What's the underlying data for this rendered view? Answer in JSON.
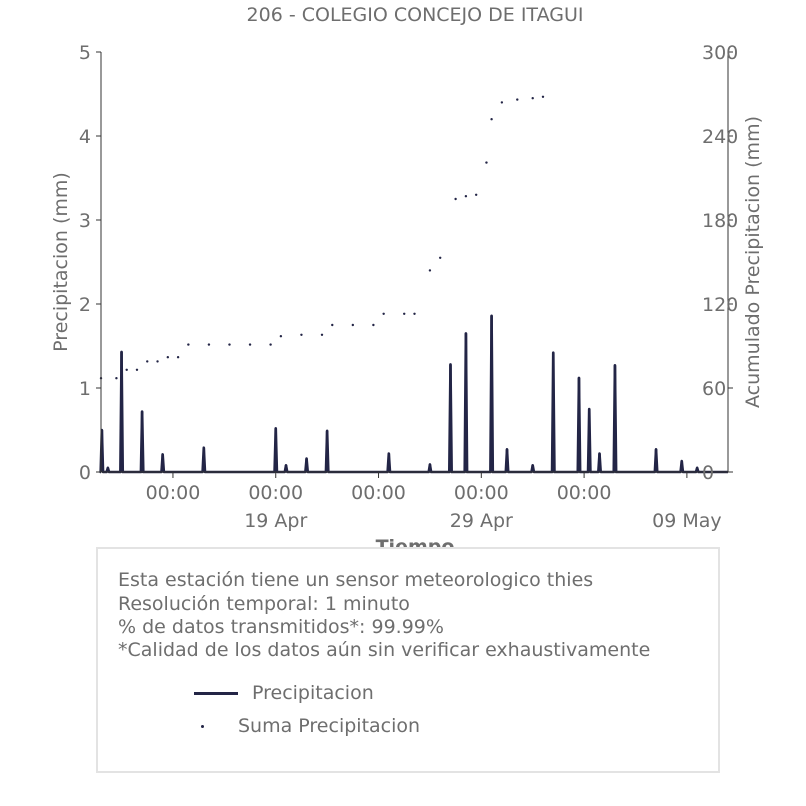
{
  "colors": {
    "series": "#232546",
    "text": "#6e6e6e",
    "axis": "#333333",
    "box_border": "#e3e3e3"
  },
  "chart_data": {
    "type": "line",
    "title": "206 - COLEGIO CONCEJO DE ITAGUI",
    "xlabel": "Tiempo",
    "ylabel": "Precipitacion (mm)",
    "y2label": "Acumulado Precipitacion (mm)",
    "ylim": [
      0,
      5
    ],
    "y2lim": [
      0,
      300
    ],
    "yticks": [
      "0",
      "1",
      "2",
      "3",
      "4",
      "5"
    ],
    "y2ticks": [
      "0",
      "60",
      "120",
      "180",
      "240",
      "300"
    ],
    "xlim": [
      "2024-04-10T12:00",
      "2024-05-11T00:00"
    ],
    "xticks_minor": [
      {
        "t": "2024-04-14T00:00",
        "label": "00:00"
      },
      {
        "t": "2024-04-19T00:00",
        "label": "00:00"
      },
      {
        "t": "2024-04-24T00:00",
        "label": "00:00"
      },
      {
        "t": "2024-04-29T00:00",
        "label": "00:00"
      },
      {
        "t": "2024-05-04T00:00",
        "label": "00:00"
      },
      {
        "t": "2024-05-09T00:00",
        "label": ""
      }
    ],
    "xticks_major": [
      {
        "t": "2024-04-19T00:00",
        "label": "19 Apr"
      },
      {
        "t": "2024-04-29T00:00",
        "label": "29 Apr"
      },
      {
        "t": "2024-05-09T00:00",
        "label": "09 May"
      }
    ],
    "series": [
      {
        "name": "Precipitacion",
        "type": "line",
        "axis": "left",
        "peaks": [
          {
            "t": "2024-04-10T13:00",
            "y": 0.5
          },
          {
            "t": "2024-04-10T20:00",
            "y": 0.05
          },
          {
            "t": "2024-04-11T12:00",
            "y": 1.43
          },
          {
            "t": "2024-04-12T12:00",
            "y": 0.72
          },
          {
            "t": "2024-04-13T12:00",
            "y": 0.21
          },
          {
            "t": "2024-04-15T12:00",
            "y": 0.29
          },
          {
            "t": "2024-04-19T00:00",
            "y": 0.52
          },
          {
            "t": "2024-04-19T12:00",
            "y": 0.08
          },
          {
            "t": "2024-04-20T12:00",
            "y": 0.16
          },
          {
            "t": "2024-04-21T12:00",
            "y": 0.49
          },
          {
            "t": "2024-04-24T12:00",
            "y": 0.22
          },
          {
            "t": "2024-04-26T12:00",
            "y": 0.09
          },
          {
            "t": "2024-04-27T12:00",
            "y": 1.28
          },
          {
            "t": "2024-04-28T06:00",
            "y": 1.65
          },
          {
            "t": "2024-04-29T12:00",
            "y": 1.86
          },
          {
            "t": "2024-04-30T06:00",
            "y": 0.27
          },
          {
            "t": "2024-05-01T12:00",
            "y": 0.08
          },
          {
            "t": "2024-05-02T12:00",
            "y": 1.42
          },
          {
            "t": "2024-05-03T18:00",
            "y": 1.12
          },
          {
            "t": "2024-05-04T06:00",
            "y": 0.75
          },
          {
            "t": "2024-05-04T18:00",
            "y": 0.22
          },
          {
            "t": "2024-05-05T12:00",
            "y": 1.27
          },
          {
            "t": "2024-05-07T12:00",
            "y": 0.27
          },
          {
            "t": "2024-05-08T18:00",
            "y": 0.13
          },
          {
            "t": "2024-05-09T12:00",
            "y": 0.05
          },
          {
            "t": "2024-05-05T12:00",
            "y": 0.0
          }
        ]
      },
      {
        "name": "Suma Precipitacion",
        "type": "scatter",
        "axis": "right",
        "values": [
          {
            "t": "2024-04-10T12:00",
            "y": 67
          },
          {
            "t": "2024-04-11T06:00",
            "y": 67
          },
          {
            "t": "2024-04-11T18:00",
            "y": 73
          },
          {
            "t": "2024-04-12T06:00",
            "y": 73
          },
          {
            "t": "2024-04-12T18:00",
            "y": 79
          },
          {
            "t": "2024-04-13T06:00",
            "y": 79
          },
          {
            "t": "2024-04-13T18:00",
            "y": 82
          },
          {
            "t": "2024-04-14T06:00",
            "y": 82
          },
          {
            "t": "2024-04-14T18:00",
            "y": 91
          },
          {
            "t": "2024-04-15T18:00",
            "y": 91
          },
          {
            "t": "2024-04-16T18:00",
            "y": 91
          },
          {
            "t": "2024-04-17T18:00",
            "y": 91
          },
          {
            "t": "2024-04-18T18:00",
            "y": 91
          },
          {
            "t": "2024-04-19T06:00",
            "y": 97
          },
          {
            "t": "2024-04-20T06:00",
            "y": 98
          },
          {
            "t": "2024-04-21T06:00",
            "y": 98
          },
          {
            "t": "2024-04-21T18:00",
            "y": 105
          },
          {
            "t": "2024-04-22T18:00",
            "y": 105
          },
          {
            "t": "2024-04-23T18:00",
            "y": 105
          },
          {
            "t": "2024-04-24T06:00",
            "y": 113
          },
          {
            "t": "2024-04-25T06:00",
            "y": 113
          },
          {
            "t": "2024-04-25T18:00",
            "y": 113
          },
          {
            "t": "2024-04-26T12:00",
            "y": 144
          },
          {
            "t": "2024-04-27T00:00",
            "y": 153
          },
          {
            "t": "2024-04-27T18:00",
            "y": 195
          },
          {
            "t": "2024-04-28T06:00",
            "y": 197
          },
          {
            "t": "2024-04-28T18:00",
            "y": 198
          },
          {
            "t": "2024-04-29T06:00",
            "y": 221
          },
          {
            "t": "2024-04-29T12:00",
            "y": 252
          },
          {
            "t": "2024-04-30T00:00",
            "y": 264
          },
          {
            "t": "2024-04-30T18:00",
            "y": 266
          },
          {
            "t": "2024-05-01T12:00",
            "y": 267
          },
          {
            "t": "2024-05-02T00:00",
            "y": 268
          }
        ]
      }
    ],
    "legend": {
      "placement": "inside info box"
    }
  },
  "info": {
    "line1": "Esta estación tiene un sensor meteorologico thies",
    "line2": "Resolución temporal: 1 minuto",
    "line3": "% de datos transmitidos*: 99.99%",
    "line4": "*Calidad de los datos aún sin verificar exhaustivamente"
  },
  "legend": {
    "line_label": "Precipitacion",
    "dot_label": "Suma Precipitacion"
  }
}
